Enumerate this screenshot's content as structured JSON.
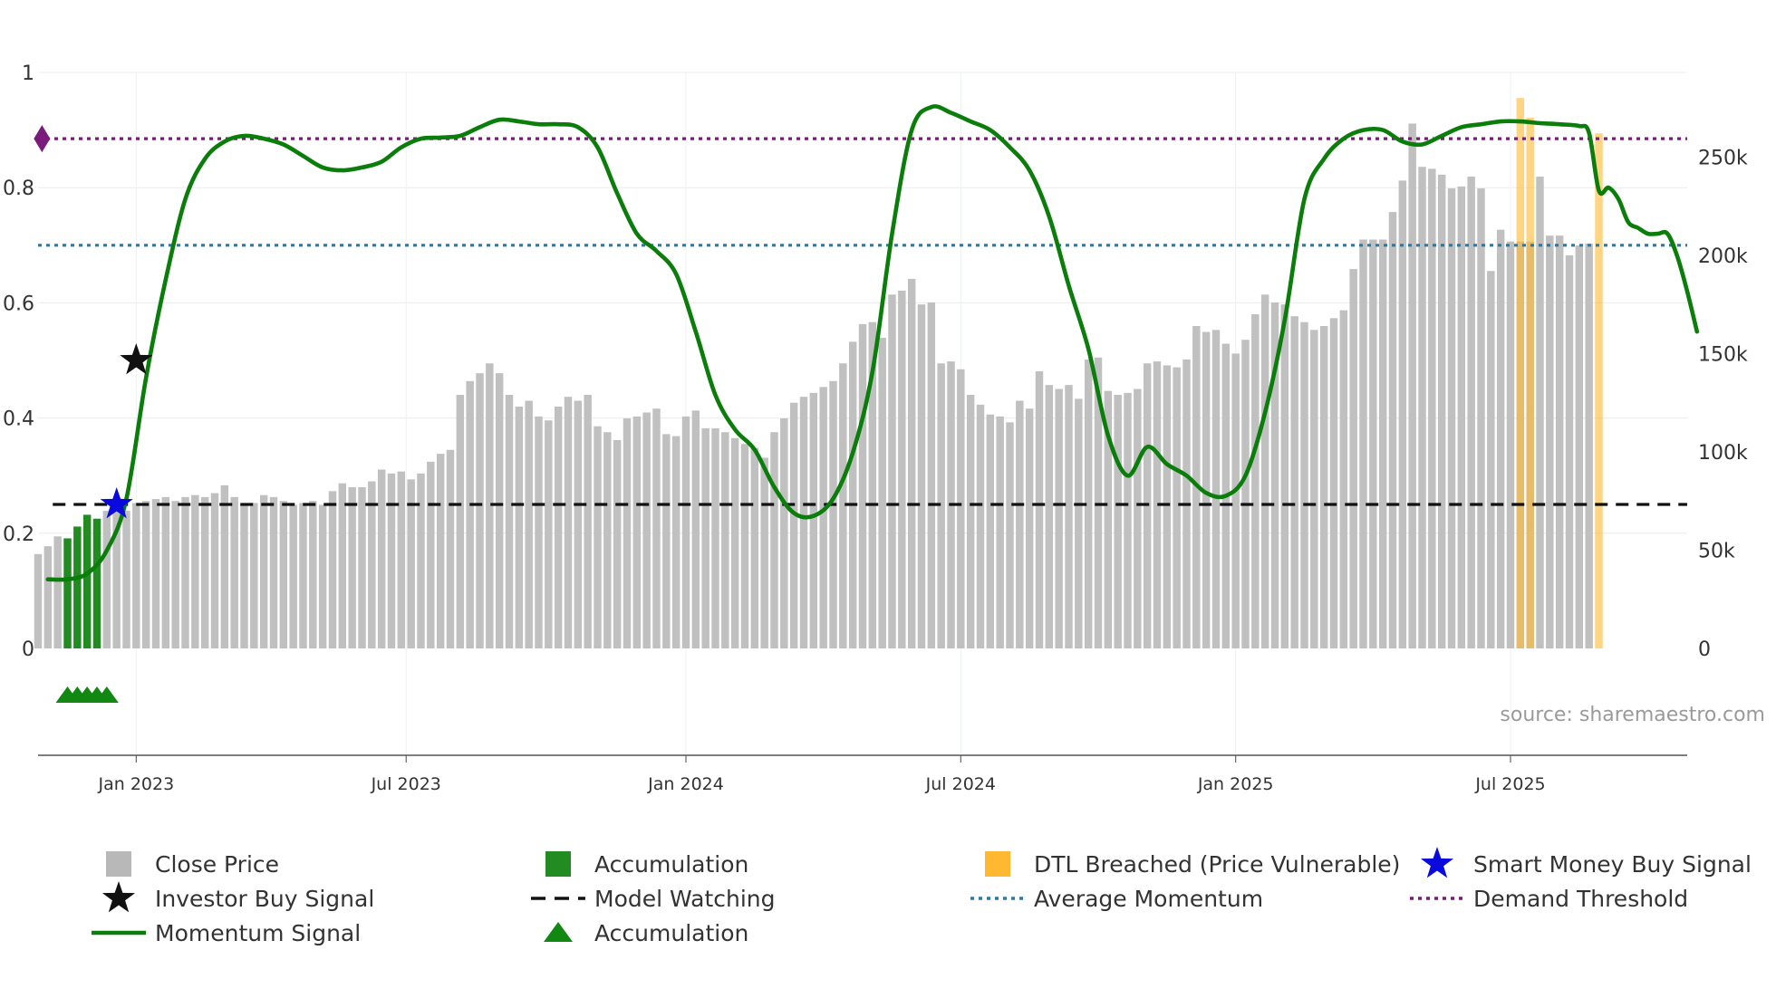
{
  "chart_data": {
    "type": "bar+line",
    "title": "",
    "source_label": "source: sharemaestro.com",
    "x_ticks": [
      "Jan 2023",
      "Jul 2023",
      "Jan 2024",
      "Jul 2024",
      "Jan 2025",
      "Jul 2025"
    ],
    "x_range_weeks": [
      -10,
      158
    ],
    "x_tick_weeks": [
      0,
      27.5,
      56,
      84,
      112,
      140
    ],
    "y_left": {
      "ticks": [
        0,
        0.2,
        0.4,
        0.6,
        0.8,
        1
      ],
      "tick_labels": [
        "0",
        "0.2",
        "0.4",
        "0.6",
        "0.8",
        "1"
      ],
      "range": [
        0,
        1
      ]
    },
    "y_right": {
      "ticks": [
        0,
        50000,
        100000,
        150000,
        200000,
        250000
      ],
      "tick_labels": [
        "0",
        "50k",
        "100k",
        "150k",
        "200k",
        "250k"
      ],
      "range": [
        0,
        293000
      ]
    },
    "series": [
      {
        "name": "Close Price",
        "type": "bar",
        "axis": "right",
        "color": "#c0c0c0",
        "x_start_week": -10,
        "values": [
          48000,
          52000,
          57000,
          56000,
          62000,
          68000,
          66000,
          70000,
          72000,
          70000,
          74000,
          75000,
          76000,
          77000,
          75000,
          77000,
          78000,
          77000,
          79000,
          83000,
          77000,
          73000,
          74000,
          78000,
          77000,
          75000,
          73000,
          74000,
          75000,
          73000,
          80000,
          84000,
          82000,
          82000,
          85000,
          91000,
          89000,
          90000,
          86000,
          89000,
          95000,
          99000,
          101000,
          129000,
          136000,
          140000,
          145000,
          140000,
          129000,
          123000,
          126000,
          118000,
          116000,
          123000,
          128000,
          126000,
          129000,
          113000,
          110000,
          106000,
          117000,
          118000,
          120000,
          122000,
          109000,
          108000,
          118000,
          121000,
          112000,
          112000,
          110000,
          107000,
          104000,
          102000,
          97000,
          110000,
          117000,
          125000,
          128000,
          130000,
          133000,
          136000,
          145000,
          156000,
          165000,
          166000,
          158000,
          180000,
          182000,
          188000,
          175000,
          176000,
          145000,
          146000,
          142000,
          129000,
          124000,
          119000,
          118000,
          115000,
          126000,
          122000,
          141000,
          134000,
          132000,
          134000,
          127000,
          147000,
          148000,
          131000,
          129000,
          130000,
          132000,
          145000,
          146000,
          144000,
          143000,
          147000,
          164000,
          161000,
          162000,
          155000,
          150000,
          157000,
          170000,
          180000,
          176000,
          175000,
          169000,
          166000,
          162000,
          164000,
          168000,
          172000,
          193000,
          208000,
          208000,
          208000,
          222000,
          238000,
          267000,
          245000,
          244000,
          241000,
          234000,
          235000,
          240000,
          234000,
          192000,
          213000,
          207000,
          207000,
          207000,
          240000,
          210000,
          210000,
          200000,
          205000,
          206000
        ],
        "accumulation_bar_indices": [
          3,
          4,
          5,
          6
        ],
        "accumulation_color": "#228b22",
        "dtl_breached_indices": [
          151,
          152,
          159
        ],
        "dtl_color": "#ffb830",
        "dtl_values": [
          280000,
          270000,
          262000
        ]
      },
      {
        "name": "Momentum Signal",
        "type": "line",
        "axis": "left",
        "color": "#0a7d0a",
        "points_week_value": [
          [
            -9,
            0.12
          ],
          [
            -7,
            0.12
          ],
          [
            -5,
            0.13
          ],
          [
            -3,
            0.17
          ],
          [
            -1,
            0.26
          ],
          [
            1,
            0.47
          ],
          [
            3,
            0.64
          ],
          [
            5,
            0.78
          ],
          [
            7,
            0.85
          ],
          [
            9,
            0.88
          ],
          [
            11,
            0.89
          ],
          [
            13,
            0.885
          ],
          [
            15,
            0.875
          ],
          [
            17,
            0.855
          ],
          [
            19,
            0.835
          ],
          [
            21,
            0.83
          ],
          [
            23,
            0.835
          ],
          [
            25,
            0.845
          ],
          [
            27,
            0.87
          ],
          [
            29,
            0.885
          ],
          [
            31,
            0.887
          ],
          [
            33,
            0.89
          ],
          [
            35,
            0.905
          ],
          [
            37,
            0.918
          ],
          [
            39,
            0.915
          ],
          [
            41,
            0.91
          ],
          [
            43,
            0.91
          ],
          [
            45,
            0.905
          ],
          [
            47,
            0.87
          ],
          [
            49,
            0.79
          ],
          [
            51,
            0.72
          ],
          [
            53,
            0.69
          ],
          [
            55,
            0.65
          ],
          [
            57,
            0.55
          ],
          [
            59,
            0.44
          ],
          [
            61,
            0.38
          ],
          [
            63,
            0.345
          ],
          [
            65,
            0.28
          ],
          [
            67,
            0.235
          ],
          [
            69,
            0.23
          ],
          [
            71,
            0.26
          ],
          [
            73,
            0.34
          ],
          [
            75,
            0.48
          ],
          [
            77,
            0.72
          ],
          [
            79,
            0.9
          ],
          [
            81,
            0.94
          ],
          [
            83,
            0.93
          ],
          [
            85,
            0.915
          ],
          [
            87,
            0.9
          ],
          [
            89,
            0.87
          ],
          [
            91,
            0.83
          ],
          [
            93,
            0.75
          ],
          [
            95,
            0.63
          ],
          [
            97,
            0.52
          ],
          [
            99,
            0.37
          ],
          [
            101,
            0.3
          ],
          [
            103,
            0.35
          ],
          [
            105,
            0.32
          ],
          [
            107,
            0.3
          ],
          [
            109,
            0.27
          ],
          [
            111,
            0.265
          ],
          [
            113,
            0.3
          ],
          [
            115,
            0.41
          ],
          [
            117,
            0.57
          ],
          [
            119,
            0.78
          ],
          [
            121,
            0.85
          ],
          [
            123,
            0.885
          ],
          [
            125,
            0.9
          ],
          [
            127,
            0.9
          ],
          [
            129,
            0.88
          ],
          [
            131,
            0.875
          ],
          [
            133,
            0.89
          ],
          [
            135,
            0.905
          ],
          [
            137,
            0.91
          ],
          [
            139,
            0.915
          ],
          [
            141,
            0.915
          ],
          [
            143,
            0.912
          ],
          [
            145,
            0.91
          ],
          [
            147,
            0.907
          ],
          [
            148,
            0.895
          ],
          [
            149,
            0.795
          ],
          [
            150,
            0.8
          ],
          [
            151,
            0.78
          ],
          [
            152,
            0.74
          ],
          [
            153,
            0.73
          ],
          [
            154,
            0.72
          ],
          [
            155,
            0.72
          ],
          [
            156,
            0.72
          ],
          [
            157,
            0.68
          ],
          [
            158,
            0.62
          ],
          [
            159,
            0.55
          ]
        ]
      },
      {
        "name": "Average Momentum",
        "type": "hline",
        "axis": "left",
        "value": 0.7,
        "color": "#2a7aa8",
        "style": "dotted"
      },
      {
        "name": "Demand Threshold",
        "type": "hline",
        "axis": "left",
        "value": 0.885,
        "color": "#7a1a7a",
        "style": "dotted"
      },
      {
        "name": "Model Watching",
        "type": "hline",
        "axis": "left",
        "value": 0.25,
        "color": "#111111",
        "style": "dashed"
      }
    ],
    "markers": [
      {
        "name": "Smart Money Buy Signal",
        "week": -2,
        "value": 0.25,
        "shape": "star",
        "color": "#0a0adc"
      },
      {
        "name": "Investor Buy Signal",
        "week": 0,
        "value": 0.5,
        "shape": "star",
        "color": "#111111"
      },
      {
        "name": "Demand Threshold Marker",
        "week": -9.6,
        "value": 0.885,
        "shape": "diamond",
        "color": "#7a1a7a"
      }
    ],
    "accumulation_triangles_weeks": [
      -7,
      -6,
      -5,
      -4,
      -3
    ],
    "legend": [
      {
        "label": "Close Price",
        "symbol": "square",
        "color": "#b8b8b8"
      },
      {
        "label": "Accumulation",
        "symbol": "square",
        "color": "#228b22"
      },
      {
        "label": "DTL Breached (Price Vulnerable)",
        "symbol": "square",
        "color": "#ffb830"
      },
      {
        "label": "Smart Money Buy Signal",
        "symbol": "star",
        "color": "#0a0adc"
      },
      {
        "label": "Investor Buy Signal",
        "symbol": "star",
        "color": "#111111"
      },
      {
        "label": "Model Watching",
        "symbol": "dash",
        "color": "#111111"
      },
      {
        "label": "Average Momentum",
        "symbol": "dot",
        "color": "#2a7aa8"
      },
      {
        "label": "Demand Threshold",
        "symbol": "dot",
        "color": "#7a1a7a"
      },
      {
        "label": "Momentum Signal",
        "symbol": "line",
        "color": "#0a7d0a"
      },
      {
        "label": "Accumulation",
        "symbol": "triangle",
        "color": "#228b22"
      }
    ]
  }
}
